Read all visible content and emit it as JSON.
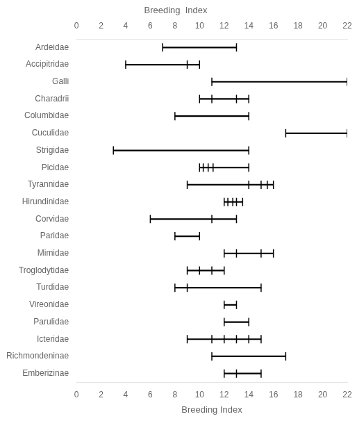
{
  "chart_data": {
    "type": "range",
    "orientation": "horizontal",
    "title": "Breeding  Index",
    "xlabel": "Breeding Index",
    "xlim": [
      0,
      22
    ],
    "xticks": [
      0,
      2,
      4,
      6,
      8,
      10,
      12,
      14,
      16,
      18,
      20,
      22
    ],
    "categories": [
      "Ardeidae",
      "Accipitridae",
      "Galli",
      "Charadrii",
      "Columbidae",
      "Cuculidae",
      "Strigidae",
      "Picidae",
      "Tyrannidae",
      "Hirundinidae",
      "Corvidae",
      "Paridae",
      "Mimidae",
      "Troglodytidae",
      "Turdidae",
      "Vireonidae",
      "Parulidae",
      "Icteridae",
      "Richmondeninae",
      "Emberizinae"
    ],
    "values": [
      [
        7,
        13
      ],
      [
        4,
        10
      ],
      [
        11,
        22
      ],
      [
        10,
        14
      ],
      [
        8,
        14
      ],
      [
        17,
        22
      ],
      [
        3,
        14
      ],
      [
        10,
        14
      ],
      [
        9,
        16
      ],
      [
        12,
        13.5
      ],
      [
        6,
        13
      ],
      [
        8,
        10
      ],
      [
        12,
        16
      ],
      [
        9,
        12
      ],
      [
        8,
        15
      ],
      [
        12,
        13
      ],
      [
        12,
        14
      ],
      [
        9,
        15
      ],
      [
        11,
        17
      ],
      [
        12,
        15
      ]
    ],
    "inner_ticks": [
      [],
      [
        9.0
      ],
      [],
      [
        11.0,
        13.0
      ],
      [],
      [],
      [],
      [
        10.3,
        10.7,
        11.1
      ],
      [
        14.0,
        15.0,
        15.5
      ],
      [
        12.3,
        12.7,
        13.0
      ],
      [
        11.0
      ],
      [],
      [
        13.0,
        15.0
      ],
      [
        10.0,
        11.0
      ],
      [
        9.0
      ],
      [],
      [],
      [
        11.0,
        12.0,
        13.0,
        14.0
      ],
      [],
      [
        13.0
      ]
    ],
    "color": "#000000",
    "grid": false
  }
}
